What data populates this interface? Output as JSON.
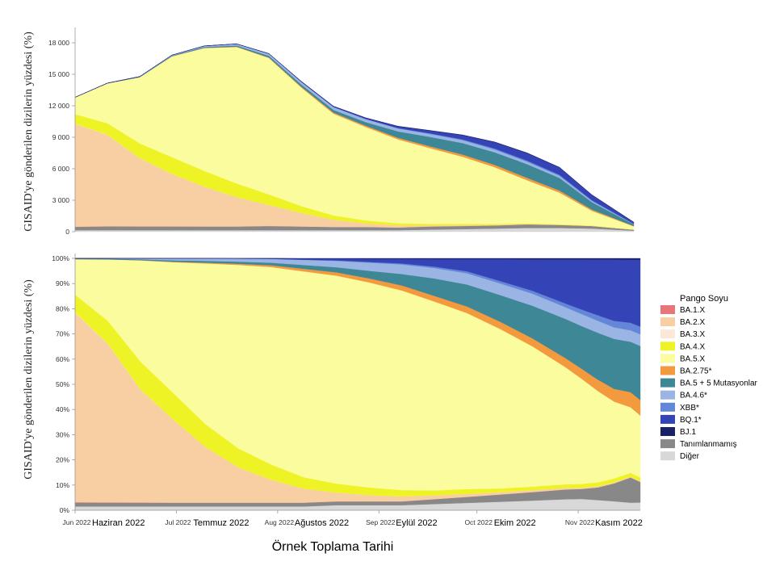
{
  "chart_data": [
    {
      "id": "counts",
      "type": "area",
      "stacked": true,
      "ylabel": "GISAID'ye gönderilen dizilerin yüzdesi (%)",
      "ylim": [
        0,
        19000
      ],
      "yticks": [
        0,
        3000,
        6000,
        9000,
        12000,
        15000,
        18000
      ],
      "ytick_labels": [
        "0",
        "3 000",
        "6 000",
        "9 000",
        "12 000",
        "15 000",
        "18 000"
      ],
      "x": [
        0,
        10,
        20,
        30,
        40,
        50,
        60,
        70,
        80,
        90,
        100,
        110,
        120,
        130,
        140,
        150,
        160,
        173
      ],
      "series": [
        {
          "name": "Diğer",
          "values": [
            150,
            150,
            150,
            150,
            150,
            150,
            150,
            150,
            150,
            150,
            150,
            200,
            250,
            300,
            350,
            350,
            300,
            100
          ]
        },
        {
          "name": "Tanımlanmamış",
          "values": [
            300,
            350,
            350,
            350,
            350,
            350,
            400,
            350,
            300,
            300,
            250,
            300,
            300,
            300,
            350,
            300,
            250,
            100
          ]
        },
        {
          "name": "BA.1.X",
          "values": [
            30,
            20,
            10,
            5,
            0,
            0,
            0,
            0,
            0,
            0,
            0,
            0,
            0,
            0,
            0,
            0,
            0,
            0
          ]
        },
        {
          "name": "BA.2.X",
          "values": [
            9800,
            8700,
            6500,
            5000,
            3800,
            2800,
            2000,
            1300,
            700,
            350,
            200,
            100,
            80,
            50,
            30,
            20,
            10,
            0
          ]
        },
        {
          "name": "BA.3.X",
          "values": [
            20,
            15,
            10,
            5,
            0,
            0,
            0,
            0,
            0,
            0,
            0,
            0,
            0,
            0,
            0,
            0,
            0,
            0
          ]
        },
        {
          "name": "BA.4.X",
          "values": [
            900,
            1100,
            1400,
            1600,
            1500,
            1300,
            1000,
            650,
            400,
            280,
            200,
            150,
            120,
            90,
            70,
            50,
            30,
            10
          ]
        },
        {
          "name": "BA.5.X",
          "values": [
            1600,
            3800,
            6300,
            9600,
            11700,
            13000,
            13000,
            11300,
            9700,
            8900,
            8000,
            7200,
            6400,
            5400,
            4100,
            3000,
            1400,
            300
          ]
        },
        {
          "name": "BA.2.75*",
          "values": [
            0,
            0,
            5,
            10,
            20,
            40,
            60,
            90,
            110,
            130,
            150,
            180,
            200,
            220,
            230,
            200,
            130,
            40
          ]
        },
        {
          "name": "BA.5 + 5 Mutasyonlar",
          "values": [
            10,
            20,
            30,
            50,
            80,
            100,
            150,
            200,
            250,
            330,
            600,
            900,
            1100,
            1200,
            1300,
            1200,
            700,
            150
          ]
        },
        {
          "name": "BA.4.6*",
          "values": [
            0,
            10,
            30,
            60,
            100,
            150,
            200,
            240,
            260,
            280,
            290,
            280,
            270,
            260,
            240,
            200,
            130,
            30
          ]
        },
        {
          "name": "XBB*",
          "values": [
            0,
            0,
            0,
            0,
            0,
            0,
            0,
            10,
            20,
            30,
            40,
            60,
            80,
            100,
            110,
            100,
            60,
            20
          ]
        },
        {
          "name": "BQ.1*",
          "values": [
            0,
            0,
            0,
            0,
            5,
            10,
            20,
            40,
            60,
            90,
            150,
            250,
            400,
            600,
            700,
            700,
            500,
            150
          ]
        },
        {
          "name": "BJ.1",
          "values": [
            0,
            0,
            0,
            0,
            0,
            0,
            0,
            5,
            10,
            15,
            20,
            25,
            25,
            25,
            25,
            20,
            10,
            5
          ]
        }
      ]
    },
    {
      "id": "percent",
      "type": "area",
      "stacked": true,
      "normalized": true,
      "ylabel": "GISAID'ye gönderilen dizilerin yüzdesi (%)",
      "xlabel": "Örnek Toplama Tarihi",
      "ylim": [
        0,
        100
      ],
      "yticks": [
        0,
        10,
        20,
        30,
        40,
        50,
        60,
        70,
        80,
        90,
        100
      ],
      "ytick_labels": [
        "0%",
        "10%",
        "20%",
        "30%",
        "40%",
        "50%",
        "60%",
        "70%",
        "80%",
        "90%",
        "100%"
      ],
      "x": [
        0,
        10,
        20,
        30,
        40,
        50,
        60,
        70,
        80,
        90,
        100,
        110,
        120,
        130,
        140,
        150,
        155,
        160,
        165,
        170,
        173
      ],
      "series": [
        {
          "name": "Diğer",
          "values": [
            1.5,
            1.5,
            1.5,
            1.5,
            1.5,
            1.5,
            1.5,
            1.5,
            2,
            2,
            2,
            2.5,
            3,
            3.5,
            4,
            4.5,
            4.5,
            4,
            3.5,
            3,
            3
          ]
        },
        {
          "name": "Tanımlanmamış",
          "values": [
            1.5,
            1.5,
            1.5,
            1.5,
            1.5,
            1.5,
            1.5,
            1.5,
            1.5,
            1.5,
            1.5,
            2,
            2.5,
            3,
            3.5,
            4,
            4,
            5,
            7,
            10,
            8
          ]
        },
        {
          "name": "BA.1.X",
          "values": [
            0.2,
            0.1,
            0.1,
            0,
            0,
            0,
            0,
            0,
            0,
            0,
            0,
            0,
            0,
            0,
            0,
            0,
            0,
            0,
            0,
            0,
            0
          ]
        },
        {
          "name": "BA.2.X",
          "values": [
            75,
            63,
            45,
            33,
            22,
            14,
            9,
            5.5,
            3.5,
            2.5,
            2,
            1.5,
            1.2,
            1,
            0.8,
            0.6,
            0.5,
            0.5,
            0.4,
            0.3,
            0.3
          ]
        },
        {
          "name": "BA.3.X",
          "values": [
            0.2,
            0.1,
            0.1,
            0,
            0,
            0,
            0,
            0,
            0,
            0,
            0,
            0,
            0,
            0,
            0,
            0,
            0,
            0,
            0,
            0,
            0
          ]
        },
        {
          "name": "BA.4.X",
          "values": [
            7,
            9,
            11,
            10.5,
            9,
            7.5,
            6,
            4.5,
            3.5,
            3,
            2.5,
            2,
            2,
            1.5,
            1.5,
            1.5,
            1.5,
            1.5,
            1.5,
            1.5,
            1.5
          ]
        },
        {
          "name": "BA.5.X",
          "values": [
            14.1,
            24.4,
            40.3,
            51.8,
            63.7,
            72.7,
            77.7,
            81,
            82,
            81,
            79,
            76,
            72,
            66,
            58,
            48,
            42,
            36,
            30,
            26,
            24
          ]
        },
        {
          "name": "BA.2.75*",
          "values": [
            0,
            0,
            0.1,
            0.2,
            0.3,
            0.5,
            0.7,
            1,
            1.3,
            1.6,
            2,
            2.3,
            2.7,
            3,
            3.3,
            3.7,
            4,
            4.5,
            5,
            6,
            6
          ]
        },
        {
          "name": "BA.5 + 5 Mutasyonlar",
          "values": [
            0.3,
            0.3,
            0.3,
            0.5,
            0.7,
            0.8,
            1,
            1.5,
            2,
            3,
            4.5,
            7,
            9,
            11,
            13.5,
            16,
            17,
            18.5,
            19.5,
            20,
            21
          ]
        },
        {
          "name": "BA.4.6*",
          "values": [
            0,
            0.1,
            0.4,
            0.8,
            1,
            1.2,
            1.5,
            2,
            2.5,
            3.2,
            3.8,
            4.2,
            4.6,
            4.8,
            5,
            4.8,
            4.8,
            4.7,
            4.5,
            4.5,
            4.5
          ]
        },
        {
          "name": "XBB*",
          "values": [
            0,
            0,
            0,
            0,
            0,
            0,
            0,
            0.1,
            0.2,
            0.3,
            0.4,
            0.6,
            0.8,
            1,
            1.2,
            1.5,
            1.8,
            2.2,
            2.5,
            3,
            3
          ]
        },
        {
          "name": "BQ.1*",
          "values": [
            0,
            0,
            0,
            0,
            0,
            0.1,
            0.2,
            0.4,
            0.7,
            1.2,
            1.8,
            3,
            5,
            9,
            13,
            18,
            20,
            22,
            24,
            25,
            26
          ]
        },
        {
          "name": "BJ.1",
          "values": [
            0,
            0,
            0,
            0,
            0,
            0,
            0,
            0.1,
            0.1,
            0.2,
            0.2,
            0.3,
            0.3,
            0.3,
            0.4,
            0.4,
            0.4,
            0.4,
            0.4,
            0.5,
            0.5
          ]
        }
      ]
    }
  ],
  "x_axis": {
    "ticks": [
      {
        "x": 0,
        "label": "Jun 2022",
        "label_tr": "Haziran 2022"
      },
      {
        "x": 31,
        "label": "Jul 2022",
        "label_tr": "Temmuz 2022"
      },
      {
        "x": 62,
        "label": "Aug 2022",
        "label_tr": "Ağustos 2022"
      },
      {
        "x": 93,
        "label": "Sep 2022",
        "label_tr": "Eylül 2022"
      },
      {
        "x": 123,
        "label": "Oct 2022",
        "label_tr": "Ekim 2022"
      },
      {
        "x": 154,
        "label": "Nov 2022",
        "label_tr": "Kasım 2022"
      }
    ],
    "xlim": [
      0,
      173
    ]
  },
  "legend": {
    "title": "Pango Soyu",
    "position": "right",
    "items": [
      {
        "name": "BA.1.X",
        "color": "#e8757a"
      },
      {
        "name": "BA.2.X",
        "color": "#f7cfa3"
      },
      {
        "name": "BA.3.X",
        "color": "#fbe8d6"
      },
      {
        "name": "BA.4.X",
        "color": "#eef326"
      },
      {
        "name": "BA.5.X",
        "color": "#fafc9e"
      },
      {
        "name": "BA.2.75*",
        "color": "#f39a3e"
      },
      {
        "name": "BA.5 + 5 Mutasyonlar",
        "color": "#3d8797"
      },
      {
        "name": "BA.4.6*",
        "color": "#9ab5e3"
      },
      {
        "name": "XBB*",
        "color": "#6486d8"
      },
      {
        "name": "BQ.1*",
        "color": "#3444b7"
      },
      {
        "name": "BJ.1",
        "color": "#1a2165"
      },
      {
        "name": "Tanımlanmamış",
        "color": "#888888"
      },
      {
        "name": "Diğer",
        "color": "#d8d8d8"
      }
    ]
  }
}
